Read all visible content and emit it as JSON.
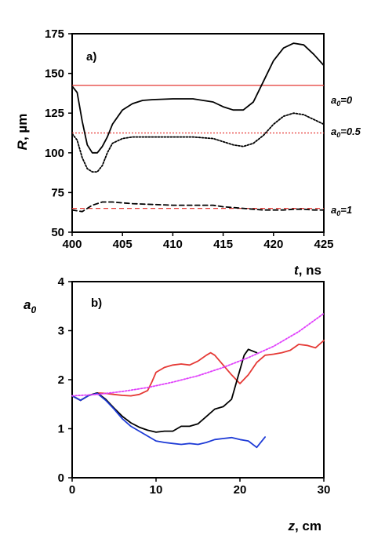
{
  "chart_data": [
    {
      "type": "line",
      "panel_label": "a)",
      "xlabel_var": "t",
      "xlabel_unit": ", ns",
      "ylabel_var": "R",
      "ylabel_unit": ", µm",
      "xlim": [
        400,
        425
      ],
      "ylim": [
        50,
        175
      ],
      "xticks": [
        "400",
        "405",
        "410",
        "415",
        "420",
        "425"
      ],
      "yticks": [
        "50",
        "75",
        "100",
        "125",
        "150",
        "175"
      ],
      "reference_lines": [
        {
          "y": 142.5,
          "color": "#e53935",
          "style": "solid",
          "label": "a0=0"
        },
        {
          "y": 112.5,
          "color": "#e53935",
          "style": "dotted",
          "label": "a0=0.5"
        },
        {
          "y": 65,
          "color": "#e53935",
          "style": "dashed",
          "label": "a0=1"
        }
      ],
      "series": [
        {
          "style": "solid",
          "color": "#000000",
          "x": [
            400,
            400.5,
            401,
            401.5,
            402,
            402.5,
            403,
            403.5,
            404,
            405,
            406,
            407,
            408,
            410,
            412,
            414,
            415,
            416,
            417,
            418,
            419,
            420,
            421,
            422,
            423,
            424,
            425
          ],
          "y": [
            142,
            138,
            120,
            105,
            100,
            100,
            104,
            110,
            118,
            127,
            131,
            133,
            133.5,
            134,
            134,
            132,
            129,
            127,
            127,
            132,
            145,
            158,
            166,
            169,
            168,
            162,
            155
          ]
        },
        {
          "style": "dotted",
          "color": "#000000",
          "x": [
            400,
            400.5,
            401,
            401.5,
            402,
            402.5,
            403,
            403.5,
            404,
            405,
            406,
            407,
            408,
            410,
            412,
            414,
            415,
            416,
            417,
            418,
            419,
            420,
            421,
            422,
            423,
            424,
            425
          ],
          "y": [
            112,
            108,
            97,
            90,
            88,
            88,
            92,
            100,
            106,
            109,
            110,
            110,
            110,
            110,
            110,
            109,
            107,
            105,
            104,
            106,
            111,
            118,
            123,
            125,
            124,
            121,
            118
          ]
        },
        {
          "style": "dashed",
          "color": "#000000",
          "x": [
            400,
            401,
            402,
            403,
            404,
            405,
            406,
            408,
            410,
            412,
            414,
            415,
            416,
            417,
            418,
            419,
            420,
            421,
            422,
            423,
            424,
            425
          ],
          "y": [
            64,
            63,
            67,
            69,
            69,
            68.5,
            68,
            67.5,
            67,
            67,
            67,
            66,
            65.5,
            65,
            64.5,
            64,
            64,
            64,
            64.5,
            64.5,
            64,
            64
          ]
        }
      ]
    },
    {
      "type": "line",
      "panel_label": "b)",
      "xlabel_var": "z",
      "xlabel_unit": ", cm",
      "ylabel_var": "a",
      "ylabel_sub": "0",
      "xlim": [
        0,
        30
      ],
      "ylim": [
        0,
        4
      ],
      "xticks": [
        "0",
        "10",
        "20",
        "30"
      ],
      "yticks": [
        "0",
        "1",
        "2",
        "3",
        "4"
      ],
      "series": [
        {
          "color": "#e53935",
          "style": "solid",
          "x": [
            0,
            1,
            2,
            3,
            4,
            5,
            6,
            7,
            8,
            9,
            9.5,
            10,
            11,
            12,
            13,
            14,
            15,
            16,
            16.5,
            17,
            18,
            19,
            20,
            21,
            22,
            23,
            24,
            25,
            26,
            27,
            28,
            29,
            30
          ],
          "y": [
            1.67,
            1.58,
            1.68,
            1.73,
            1.72,
            1.7,
            1.68,
            1.67,
            1.7,
            1.78,
            1.95,
            2.15,
            2.25,
            2.3,
            2.32,
            2.3,
            2.38,
            2.5,
            2.55,
            2.5,
            2.3,
            2.1,
            1.92,
            2.1,
            2.35,
            2.5,
            2.52,
            2.55,
            2.6,
            2.72,
            2.7,
            2.65,
            2.8
          ]
        },
        {
          "color": "#000000",
          "style": "solid",
          "x": [
            0,
            1,
            2,
            3,
            4,
            5,
            6,
            7,
            8,
            9,
            10,
            11,
            12,
            13,
            14,
            15,
            16,
            17,
            18,
            19,
            20,
            20.5,
            21,
            22
          ],
          "y": [
            1.67,
            1.58,
            1.68,
            1.73,
            1.6,
            1.42,
            1.25,
            1.12,
            1.03,
            0.97,
            0.93,
            0.95,
            0.95,
            1.05,
            1.05,
            1.1,
            1.25,
            1.4,
            1.45,
            1.6,
            2.2,
            2.5,
            2.62,
            2.55
          ]
        },
        {
          "color": "#1e3bd6",
          "style": "solid",
          "x": [
            0,
            1,
            2,
            3,
            4,
            5,
            6,
            7,
            8,
            9,
            10,
            11,
            12,
            13,
            14,
            15,
            16,
            17,
            18,
            19,
            20,
            21,
            22,
            23
          ],
          "y": [
            1.67,
            1.58,
            1.68,
            1.72,
            1.58,
            1.4,
            1.2,
            1.05,
            0.95,
            0.85,
            0.75,
            0.72,
            0.7,
            0.68,
            0.7,
            0.68,
            0.72,
            0.78,
            0.8,
            0.82,
            0.78,
            0.75,
            0.62,
            0.83
          ]
        },
        {
          "color": "#e040fb",
          "style": "dotted",
          "x": [
            0,
            3,
            6,
            9,
            12,
            15,
            18,
            21,
            24,
            27,
            30
          ],
          "y": [
            1.67,
            1.7,
            1.76,
            1.84,
            1.95,
            2.08,
            2.25,
            2.45,
            2.68,
            2.98,
            3.35
          ]
        }
      ]
    }
  ]
}
